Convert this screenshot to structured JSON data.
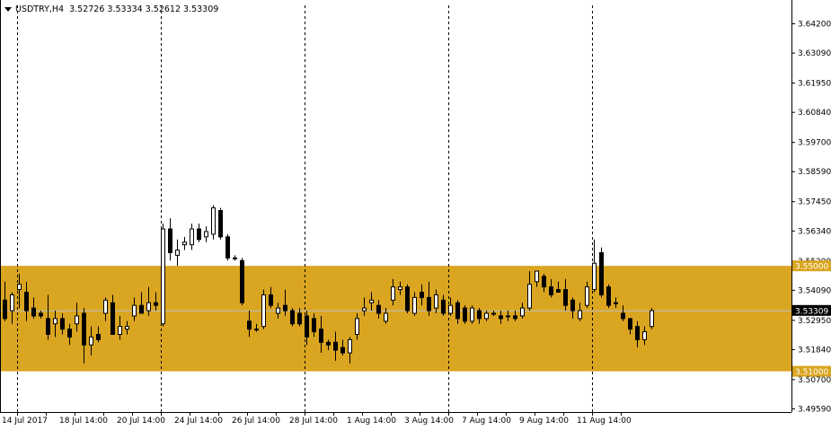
{
  "chart_title": {
    "symbol_tf": "USDTRY,H4",
    "ohlc": "3.52726 3.53334 3.52612 3.53309"
  },
  "colors": {
    "background": "#ffffff",
    "zone_fill": "#DAA520",
    "zone_label_fill": "#DAA520",
    "last_price_fill": "#000000",
    "bull_candle_body": "#ffffff",
    "bear_candle_body": "#000000",
    "wick": "#000000",
    "separator": "#000000",
    "last_price_line": "#c0c0c0"
  },
  "chart_data": {
    "type": "candlestick",
    "title": "USDTRY,H4",
    "y_ticks": [
      "3.64200",
      "3.63090",
      "3.61950",
      "3.60840",
      "3.59700",
      "3.58590",
      "3.57450",
      "3.56340",
      "3.55200",
      "3.54090",
      "3.52950",
      "3.51840",
      "3.50700",
      "3.49590"
    ],
    "ylim": [
      3.4945,
      3.6475
    ],
    "x_labels": [
      "14 Jul 2017",
      "18 Jul 14:00",
      "20 Jul 14:00",
      "24 Jul 14:00",
      "26 Jul 14:00",
      "28 Jul 14:00",
      "1 Aug 14:00",
      "3 Aug 14:00",
      "7 Aug 14:00",
      "9 Aug 14:00",
      "11 Aug 14:00"
    ],
    "day_separators": 5,
    "zones": [
      {
        "from": 3.51,
        "to": 3.55,
        "top_label": "3.55000",
        "bottom_label": "3.51000"
      }
    ],
    "last_price": "3.53309",
    "candles": [
      {
        "o": 3.537,
        "h": 3.544,
        "l": 3.529,
        "c": 3.53
      },
      {
        "o": 3.533,
        "h": 3.54,
        "l": 3.528,
        "c": 3.539
      },
      {
        "o": 3.541,
        "h": 3.547,
        "l": 3.534,
        "c": 3.543
      },
      {
        "o": 3.54,
        "h": 3.544,
        "l": 3.529,
        "c": 3.533
      },
      {
        "o": 3.534,
        "h": 3.538,
        "l": 3.53,
        "c": 3.531
      },
      {
        "o": 3.532,
        "h": 3.533,
        "l": 3.53,
        "c": 3.531
      },
      {
        "o": 3.53,
        "h": 3.539,
        "l": 3.522,
        "c": 3.524
      },
      {
        "o": 3.528,
        "h": 3.533,
        "l": 3.523,
        "c": 3.53
      },
      {
        "o": 3.53,
        "h": 3.532,
        "l": 3.524,
        "c": 3.526
      },
      {
        "o": 3.526,
        "h": 3.528,
        "l": 3.52,
        "c": 3.523
      },
      {
        "o": 3.528,
        "h": 3.536,
        "l": 3.525,
        "c": 3.531
      },
      {
        "o": 3.532,
        "h": 3.534,
        "l": 3.513,
        "c": 3.52
      },
      {
        "o": 3.52,
        "h": 3.527,
        "l": 3.516,
        "c": 3.523
      },
      {
        "o": 3.524,
        "h": 3.527,
        "l": 3.521,
        "c": 3.522
      },
      {
        "o": 3.532,
        "h": 3.538,
        "l": 3.529,
        "c": 3.537
      },
      {
        "o": 3.536,
        "h": 3.539,
        "l": 3.524,
        "c": 3.524
      },
      {
        "o": 3.524,
        "h": 3.531,
        "l": 3.522,
        "c": 3.527
      },
      {
        "o": 3.526,
        "h": 3.529,
        "l": 3.524,
        "c": 3.527
      },
      {
        "o": 3.531,
        "h": 3.538,
        "l": 3.529,
        "c": 3.535
      },
      {
        "o": 3.535,
        "h": 3.54,
        "l": 3.532,
        "c": 3.532
      },
      {
        "o": 3.533,
        "h": 3.542,
        "l": 3.531,
        "c": 3.536
      },
      {
        "o": 3.536,
        "h": 3.54,
        "l": 3.533,
        "c": 3.535
      },
      {
        "o": 3.528,
        "h": 3.566,
        "l": 3.527,
        "c": 3.564
      },
      {
        "o": 3.564,
        "h": 3.568,
        "l": 3.552,
        "c": 3.555
      },
      {
        "o": 3.554,
        "h": 3.56,
        "l": 3.55,
        "c": 3.556
      },
      {
        "o": 3.558,
        "h": 3.561,
        "l": 3.556,
        "c": 3.559
      },
      {
        "o": 3.558,
        "h": 3.566,
        "l": 3.556,
        "c": 3.564
      },
      {
        "o": 3.564,
        "h": 3.566,
        "l": 3.559,
        "c": 3.56
      },
      {
        "o": 3.561,
        "h": 3.565,
        "l": 3.559,
        "c": 3.563
      },
      {
        "o": 3.562,
        "h": 3.573,
        "l": 3.56,
        "c": 3.572
      },
      {
        "o": 3.571,
        "h": 3.572,
        "l": 3.56,
        "c": 3.561
      },
      {
        "o": 3.561,
        "h": 3.562,
        "l": 3.552,
        "c": 3.553
      },
      {
        "o": 3.553,
        "h": 3.554,
        "l": 3.552,
        "c": 3.553
      },
      {
        "o": 3.552,
        "h": 3.553,
        "l": 3.535,
        "c": 3.536
      },
      {
        "o": 3.529,
        "h": 3.533,
        "l": 3.523,
        "c": 3.526
      },
      {
        "o": 3.526,
        "h": 3.528,
        "l": 3.525,
        "c": 3.526
      },
      {
        "o": 3.527,
        "h": 3.541,
        "l": 3.526,
        "c": 3.539
      },
      {
        "o": 3.539,
        "h": 3.542,
        "l": 3.534,
        "c": 3.535
      },
      {
        "o": 3.532,
        "h": 3.536,
        "l": 3.53,
        "c": 3.534
      },
      {
        "o": 3.535,
        "h": 3.541,
        "l": 3.531,
        "c": 3.533
      },
      {
        "o": 3.533,
        "h": 3.534,
        "l": 3.527,
        "c": 3.528
      },
      {
        "o": 3.532,
        "h": 3.534,
        "l": 3.527,
        "c": 3.528
      },
      {
        "o": 3.531,
        "h": 3.533,
        "l": 3.52,
        "c": 3.523
      },
      {
        "o": 3.53,
        "h": 3.532,
        "l": 3.523,
        "c": 3.525
      },
      {
        "o": 3.526,
        "h": 3.531,
        "l": 3.517,
        "c": 3.521
      },
      {
        "o": 3.521,
        "h": 3.522,
        "l": 3.518,
        "c": 3.52
      },
      {
        "o": 3.521,
        "h": 3.525,
        "l": 3.514,
        "c": 3.518
      },
      {
        "o": 3.519,
        "h": 3.522,
        "l": 3.516,
        "c": 3.517
      },
      {
        "o": 3.517,
        "h": 3.523,
        "l": 3.513,
        "c": 3.522
      },
      {
        "o": 3.524,
        "h": 3.532,
        "l": 3.522,
        "c": 3.53
      },
      {
        "o": 3.533,
        "h": 3.538,
        "l": 3.531,
        "c": 3.534
      },
      {
        "o": 3.536,
        "h": 3.54,
        "l": 3.533,
        "c": 3.537
      },
      {
        "o": 3.535,
        "h": 3.537,
        "l": 3.53,
        "c": 3.532
      },
      {
        "o": 3.529,
        "h": 3.534,
        "l": 3.528,
        "c": 3.532
      },
      {
        "o": 3.537,
        "h": 3.545,
        "l": 3.535,
        "c": 3.542
      },
      {
        "o": 3.541,
        "h": 3.544,
        "l": 3.539,
        "c": 3.542
      },
      {
        "o": 3.542,
        "h": 3.543,
        "l": 3.532,
        "c": 3.533
      },
      {
        "o": 3.532,
        "h": 3.54,
        "l": 3.531,
        "c": 3.538
      },
      {
        "o": 3.54,
        "h": 3.543,
        "l": 3.535,
        "c": 3.538
      },
      {
        "o": 3.538,
        "h": 3.544,
        "l": 3.531,
        "c": 3.533
      },
      {
        "o": 3.534,
        "h": 3.541,
        "l": 3.532,
        "c": 3.539
      },
      {
        "o": 3.537,
        "h": 3.539,
        "l": 3.531,
        "c": 3.532
      },
      {
        "o": 3.532,
        "h": 3.538,
        "l": 3.531,
        "c": 3.535
      },
      {
        "o": 3.536,
        "h": 3.537,
        "l": 3.528,
        "c": 3.53
      },
      {
        "o": 3.534,
        "h": 3.535,
        "l": 3.528,
        "c": 3.529
      },
      {
        "o": 3.529,
        "h": 3.535,
        "l": 3.528,
        "c": 3.534
      },
      {
        "o": 3.533,
        "h": 3.534,
        "l": 3.528,
        "c": 3.53
      },
      {
        "o": 3.53,
        "h": 3.533,
        "l": 3.529,
        "c": 3.532
      },
      {
        "o": 3.532,
        "h": 3.533,
        "l": 3.531,
        "c": 3.532
      },
      {
        "o": 3.531,
        "h": 3.533,
        "l": 3.528,
        "c": 3.53
      },
      {
        "o": 3.531,
        "h": 3.533,
        "l": 3.529,
        "c": 3.531
      },
      {
        "o": 3.531,
        "h": 3.533,
        "l": 3.529,
        "c": 3.53
      },
      {
        "o": 3.531,
        "h": 3.536,
        "l": 3.53,
        "c": 3.534
      },
      {
        "o": 3.534,
        "h": 3.548,
        "l": 3.533,
        "c": 3.543
      },
      {
        "o": 3.544,
        "h": 3.548,
        "l": 3.542,
        "c": 3.548
      },
      {
        "o": 3.546,
        "h": 3.547,
        "l": 3.54,
        "c": 3.542
      },
      {
        "o": 3.542,
        "h": 3.545,
        "l": 3.538,
        "c": 3.539
      },
      {
        "o": 3.541,
        "h": 3.544,
        "l": 3.54,
        "c": 3.54
      },
      {
        "o": 3.541,
        "h": 3.545,
        "l": 3.533,
        "c": 3.535
      },
      {
        "o": 3.537,
        "h": 3.538,
        "l": 3.53,
        "c": 3.533
      },
      {
        "o": 3.53,
        "h": 3.536,
        "l": 3.529,
        "c": 3.533
      },
      {
        "o": 3.535,
        "h": 3.544,
        "l": 3.534,
        "c": 3.542
      },
      {
        "o": 3.541,
        "h": 3.56,
        "l": 3.54,
        "c": 3.551
      },
      {
        "o": 3.555,
        "h": 3.557,
        "l": 3.538,
        "c": 3.539
      },
      {
        "o": 3.542,
        "h": 3.543,
        "l": 3.534,
        "c": 3.535
      },
      {
        "o": 3.536,
        "h": 3.538,
        "l": 3.534,
        "c": 3.536
      },
      {
        "o": 3.532,
        "h": 3.535,
        "l": 3.529,
        "c": 3.53
      },
      {
        "o": 3.53,
        "h": 3.529,
        "l": 3.524,
        "c": 3.526
      },
      {
        "o": 3.527,
        "h": 3.529,
        "l": 3.519,
        "c": 3.522
      },
      {
        "o": 3.522,
        "h": 3.527,
        "l": 3.52,
        "c": 3.525
      },
      {
        "o": 3.527,
        "h": 3.534,
        "l": 3.526,
        "c": 3.533
      }
    ]
  }
}
